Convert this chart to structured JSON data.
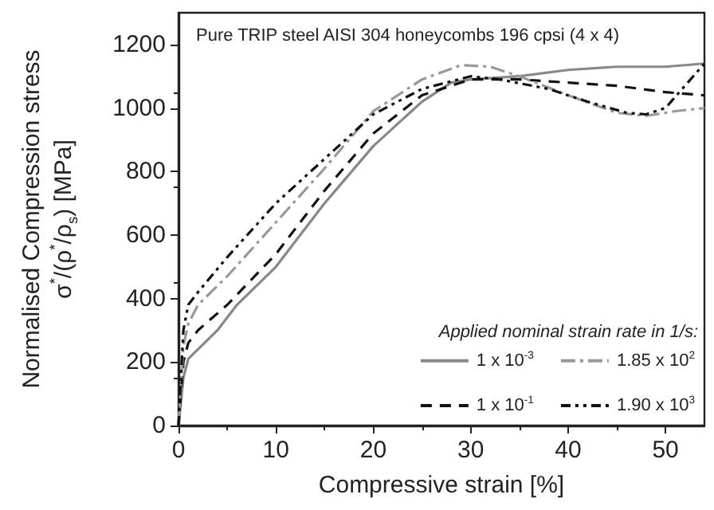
{
  "chart_data": {
    "type": "line",
    "title": "Pure TRIP steel AISI 304 honeycombs 196 cpsi (4 x 4)",
    "xlabel": "Compressive strain [%]",
    "ylabel": "Normalised Compression stress\nσ$^{*}$/(ρ$^{*}$/ρ$_{s}$) [MPa]",
    "legend_title": "Applied nominal strain rate in 1/s:",
    "legend": "bottom right",
    "grid": false,
    "marker": "none",
    "xlim": [
      0,
      54
    ],
    "xticks": [
      0,
      10,
      20,
      30,
      40,
      50
    ],
    "ylim": [
      0,
      1300
    ],
    "yticks": [
      0,
      200,
      400,
      600,
      800,
      1000,
      1200
    ],
    "series": [
      {
        "name": "1 x 10$^{-3}$",
        "color": "#888888",
        "line_style": "solid",
        "x": [
          0,
          0.5,
          1,
          2,
          4,
          6,
          10,
          15,
          20,
          25,
          28,
          30,
          35,
          40,
          45,
          50,
          54
        ],
        "values": [
          0,
          150,
          210,
          240,
          300,
          380,
          500,
          700,
          880,
          1020,
          1080,
          1090,
          1100,
          1120,
          1130,
          1130,
          1140
        ]
      },
      {
        "name": "1 x 10$^{-1}$",
        "color": "#111111",
        "line_style": "dashed",
        "x": [
          0,
          0.5,
          1,
          2,
          5,
          10,
          15,
          20,
          25,
          30,
          35,
          40,
          45,
          50,
          54
        ],
        "values": [
          0,
          200,
          260,
          300,
          380,
          540,
          740,
          920,
          1040,
          1090,
          1090,
          1080,
          1070,
          1050,
          1040
        ]
      },
      {
        "name": "1.85 x 10$^{2}$",
        "color": "#999999",
        "line_style": "dashdot",
        "x": [
          0,
          0.5,
          1,
          2,
          5,
          10,
          15,
          20,
          25,
          29,
          32,
          35,
          40,
          45,
          48,
          51,
          54
        ],
        "values": [
          0,
          250,
          320,
          380,
          470,
          640,
          810,
          990,
          1090,
          1135,
          1130,
          1100,
          1040,
          985,
          975,
          990,
          1000
        ]
      },
      {
        "name": "1.90 x 10$^{3}$",
        "color": "#111111",
        "line_style": "dashdotdot",
        "x": [
          0,
          0.5,
          1,
          2,
          5,
          10,
          15,
          20,
          25,
          30,
          33,
          38,
          42,
          46,
          48,
          50,
          52,
          54
        ],
        "values": [
          0,
          300,
          380,
          420,
          530,
          700,
          840,
          980,
          1060,
          1100,
          1090,
          1060,
          1020,
          985,
          980,
          1000,
          1070,
          1140
        ]
      }
    ]
  }
}
